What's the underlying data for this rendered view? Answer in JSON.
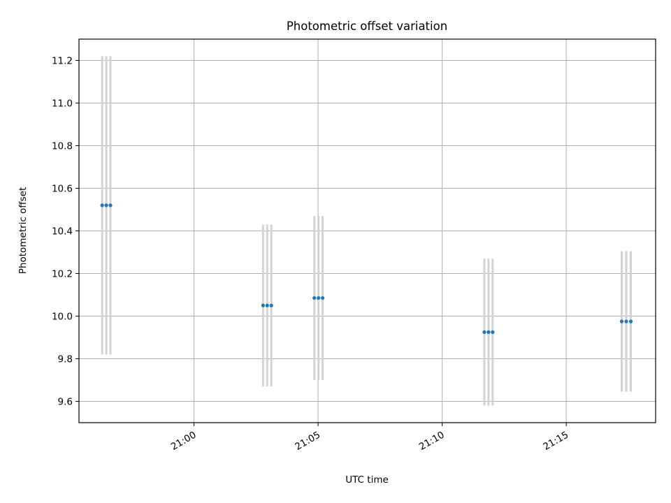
{
  "chart_data": {
    "type": "scatter",
    "title": "Photometric offset variation",
    "xlabel": "UTC time",
    "ylabel": "Photometric offset",
    "x_ticks": [
      "21:00",
      "21:05",
      "21:10",
      "21:15"
    ],
    "y_ticks": [
      "9.6",
      "9.8",
      "10.0",
      "10.2",
      "10.4",
      "10.6",
      "10.8",
      "11.0",
      "11.2"
    ],
    "xlim": [
      "20:55:22",
      "21:18:36"
    ],
    "ylim": [
      9.5,
      11.3
    ],
    "grid": true,
    "colors": {
      "points": "#1f77b4",
      "errorbars": "#d3d3d3",
      "grid": "#b0b0b0"
    },
    "series": [
      {
        "points": [
          {
            "x": "20:56:18",
            "y": 10.52,
            "err_low": 9.82,
            "err_high": 11.22
          },
          {
            "x": "20:56:28",
            "y": 10.52,
            "err_low": 9.82,
            "err_high": 11.22
          },
          {
            "x": "20:56:38",
            "y": 10.52,
            "err_low": 9.82,
            "err_high": 11.22
          },
          {
            "x": "21:02:47",
            "y": 10.05,
            "err_low": 9.67,
            "err_high": 10.43
          },
          {
            "x": "21:02:57",
            "y": 10.05,
            "err_low": 9.67,
            "err_high": 10.43
          },
          {
            "x": "21:03:07",
            "y": 10.05,
            "err_low": 9.67,
            "err_high": 10.43
          },
          {
            "x": "21:04:51",
            "y": 10.085,
            "err_low": 9.7,
            "err_high": 10.47
          },
          {
            "x": "21:05:01",
            "y": 10.085,
            "err_low": 9.7,
            "err_high": 10.47
          },
          {
            "x": "21:05:11",
            "y": 10.085,
            "err_low": 9.7,
            "err_high": 10.47
          },
          {
            "x": "21:11:42",
            "y": 9.925,
            "err_low": 9.58,
            "err_high": 10.27
          },
          {
            "x": "21:11:52",
            "y": 9.925,
            "err_low": 9.58,
            "err_high": 10.27
          },
          {
            "x": "21:12:02",
            "y": 9.925,
            "err_low": 9.58,
            "err_high": 10.27
          },
          {
            "x": "21:17:14",
            "y": 9.975,
            "err_low": 9.645,
            "err_high": 10.305
          },
          {
            "x": "21:17:25",
            "y": 9.975,
            "err_low": 9.645,
            "err_high": 10.305
          },
          {
            "x": "21:17:36",
            "y": 9.975,
            "err_low": 9.645,
            "err_high": 10.305
          }
        ]
      }
    ]
  }
}
